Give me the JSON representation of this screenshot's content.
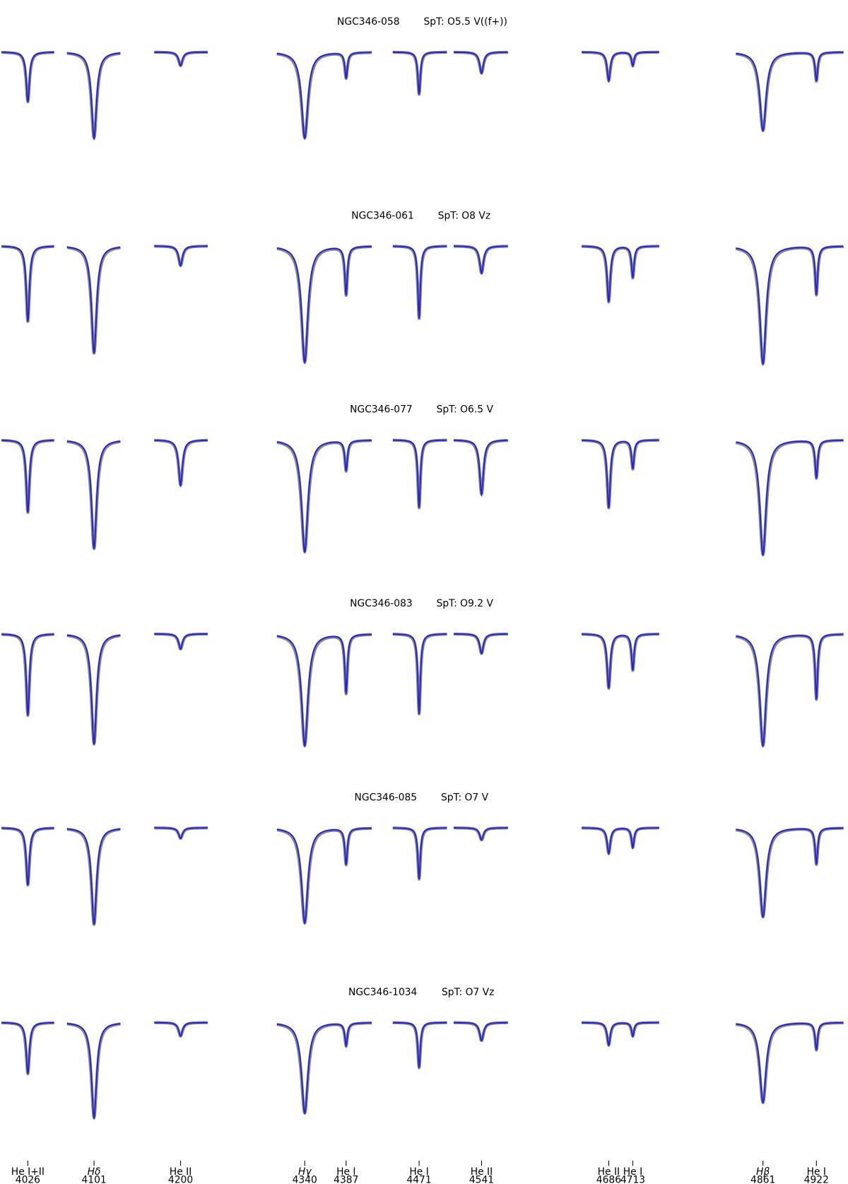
{
  "chart_data": {
    "type": "spectra",
    "lines": [
      {
        "ion": "He I+II",
        "wavelength": "4026"
      },
      {
        "ion": "Hδ",
        "wavelength": "4101"
      },
      {
        "ion": "He II",
        "wavelength": "4200"
      },
      {
        "ion": "Hγ",
        "wavelength": "4340"
      },
      {
        "ion": "He I",
        "wavelength": "4387"
      },
      {
        "ion": "He I",
        "wavelength": "4471"
      },
      {
        "ion": "He II",
        "wavelength": "4541"
      },
      {
        "ion": "He II",
        "wavelength": "4686"
      },
      {
        "ion": "He I",
        "wavelength": "4713"
      },
      {
        "ion": "Hβ",
        "wavelength": "4861"
      },
      {
        "ion": "He I",
        "wavelength": "4922"
      }
    ],
    "stars": [
      {
        "name": "NGC346-058",
        "spt": "SpT: O5.5 V((f+))",
        "depths": [
          0.33,
          0.57,
          0.09,
          0.57,
          0.17,
          0.28,
          0.14,
          0.19,
          0.09,
          0.52,
          0.19
        ]
      },
      {
        "name": "NGC346-061",
        "spt": "SpT: O8 Vz",
        "depths": [
          0.5,
          0.71,
          0.13,
          0.77,
          0.32,
          0.48,
          0.18,
          0.37,
          0.21,
          0.78,
          0.32
        ]
      },
      {
        "name": "NGC346-077",
        "spt": "SpT: O6.5 V",
        "depths": [
          0.48,
          0.72,
          0.3,
          0.74,
          0.2,
          0.45,
          0.36,
          0.45,
          0.19,
          0.76,
          0.25
        ]
      },
      {
        "name": "NGC346-083",
        "spt": "SpT: O9.2 V",
        "depths": [
          0.54,
          0.73,
          0.1,
          0.74,
          0.39,
          0.53,
          0.13,
          0.36,
          0.24,
          0.74,
          0.43
        ]
      },
      {
        "name": "NGC346-085",
        "spt": "SpT: O7 V",
        "depths": [
          0.38,
          0.64,
          0.07,
          0.63,
          0.24,
          0.34,
          0.08,
          0.17,
          0.13,
          0.59,
          0.24
        ]
      },
      {
        "name": "NGC346-1034",
        "spt": "SpT: O7 Vz",
        "depths": [
          0.34,
          0.63,
          0.09,
          0.6,
          0.15,
          0.3,
          0.12,
          0.15,
          0.09,
          0.53,
          0.18
        ]
      }
    ],
    "colors": {
      "observed": "#8c8c8c",
      "model": "#2323d8"
    }
  }
}
